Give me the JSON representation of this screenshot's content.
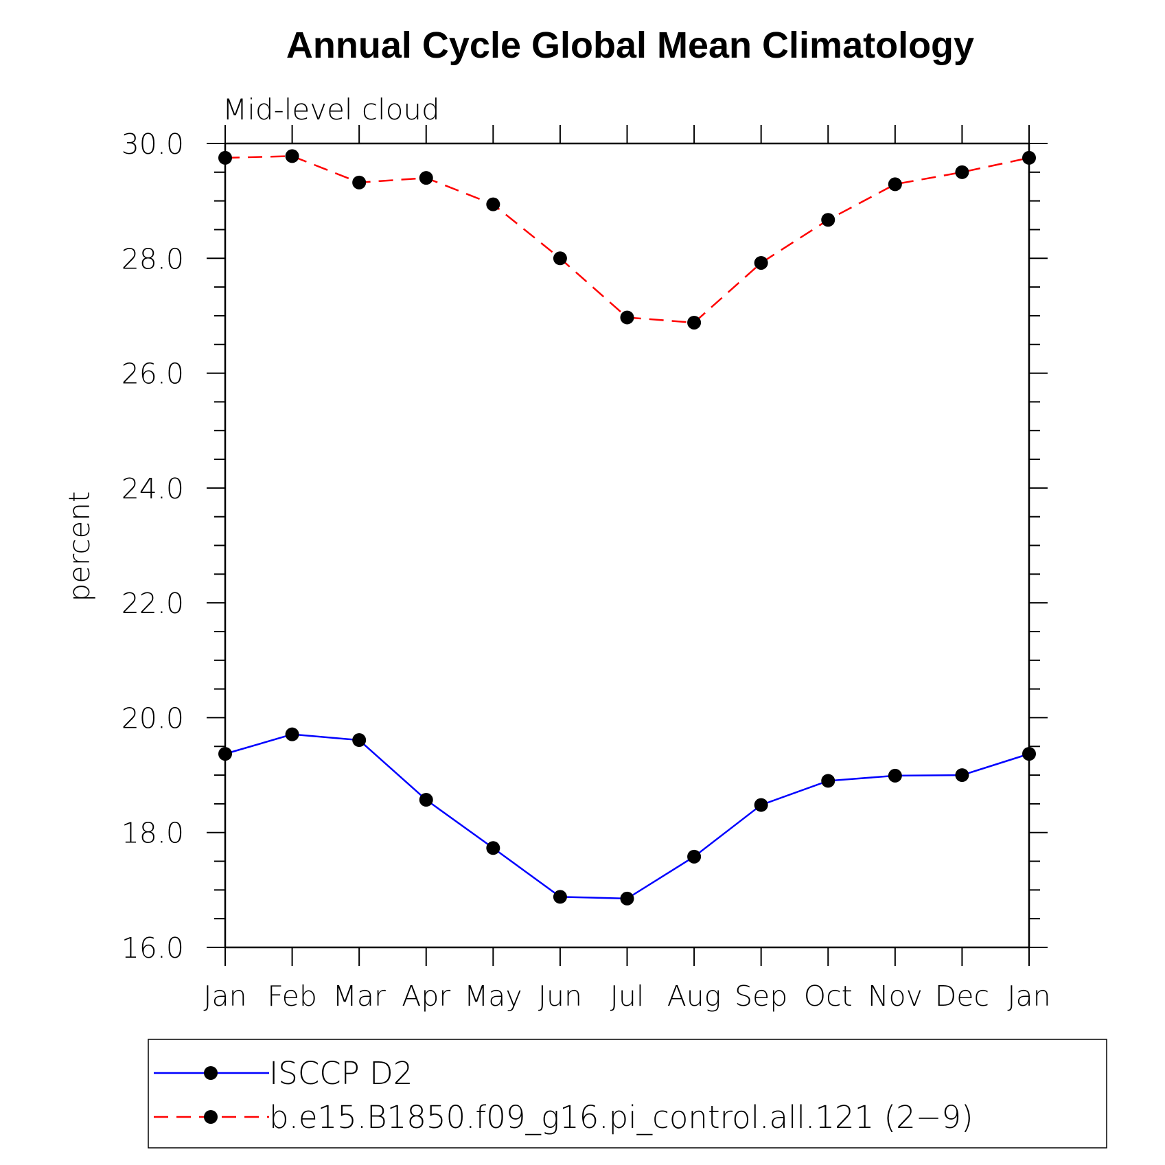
{
  "chart_data": {
    "type": "line",
    "title": "Annual Cycle Global Mean Climatology",
    "subtitle": "Mid-level cloud",
    "xlabel": "",
    "ylabel": "percent",
    "categories": [
      "Jan",
      "Feb",
      "Mar",
      "Apr",
      "May",
      "Jun",
      "Jul",
      "Aug",
      "Sep",
      "Oct",
      "Nov",
      "Dec",
      "Jan"
    ],
    "ylim": [
      16.0,
      30.0
    ],
    "yticks": [
      "16.0",
      "18.0",
      "20.0",
      "22.0",
      "24.0",
      "26.0",
      "28.0",
      "30.0"
    ],
    "grid": false,
    "legend_position": "bottom",
    "series": [
      {
        "name": "ISCCP D2",
        "color": "#0000ff",
        "line_style": "solid",
        "marker": "filled-circle",
        "values": [
          19.37,
          19.71,
          19.61,
          18.57,
          17.73,
          16.88,
          16.85,
          17.58,
          18.48,
          18.9,
          18.99,
          19.0,
          19.37
        ]
      },
      {
        "name": "b.e15.B1850.f09_g16.pi_control.all.121 (2−9)",
        "color": "#ff0000",
        "line_style": "dashed",
        "marker": "filled-circle",
        "values": [
          29.75,
          29.78,
          29.32,
          29.4,
          28.94,
          28.0,
          26.97,
          26.88,
          27.92,
          28.67,
          29.29,
          29.5,
          29.75
        ]
      }
    ]
  }
}
